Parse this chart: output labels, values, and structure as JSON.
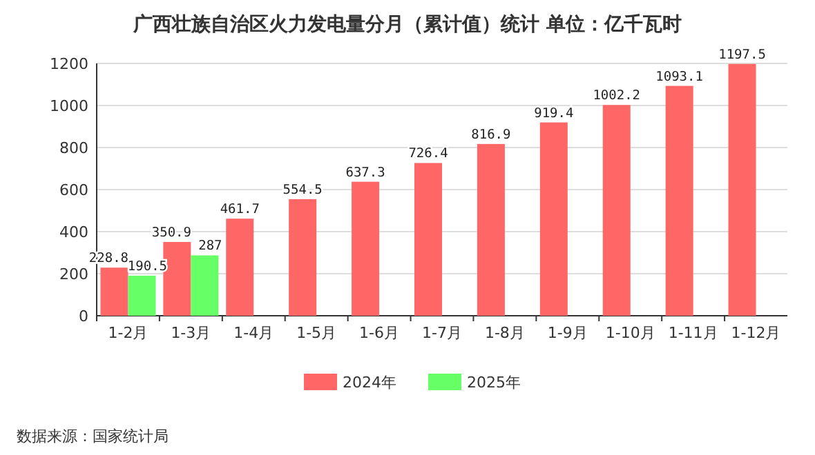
{
  "chart_data": {
    "type": "bar",
    "title": "广西壮族自治区火力发电量分月（累计值）统计  单位：亿千瓦时",
    "categories": [
      "1-2月",
      "1-3月",
      "1-4月",
      "1-5月",
      "1-6月",
      "1-7月",
      "1-8月",
      "1-9月",
      "1-10月",
      "1-11月",
      "1-12月"
    ],
    "series": [
      {
        "name": "2024年",
        "color": "#ff6666",
        "values": [
          228.8,
          350.9,
          461.7,
          554.5,
          637.3,
          726.4,
          816.9,
          919.4,
          1002.2,
          1093.1,
          1197.5
        ]
      },
      {
        "name": "2025年",
        "color": "#66ff66",
        "values": [
          190.5,
          287,
          null,
          null,
          null,
          null,
          null,
          null,
          null,
          null,
          null
        ]
      }
    ],
    "ylim": [
      0,
      1200
    ],
    "yticks": [
      0,
      200,
      400,
      600,
      800,
      1000,
      1200
    ],
    "grid": "y",
    "legend": "bottom",
    "data_labels": true,
    "annotations": [
      "数据来源：国家统计局"
    ]
  }
}
